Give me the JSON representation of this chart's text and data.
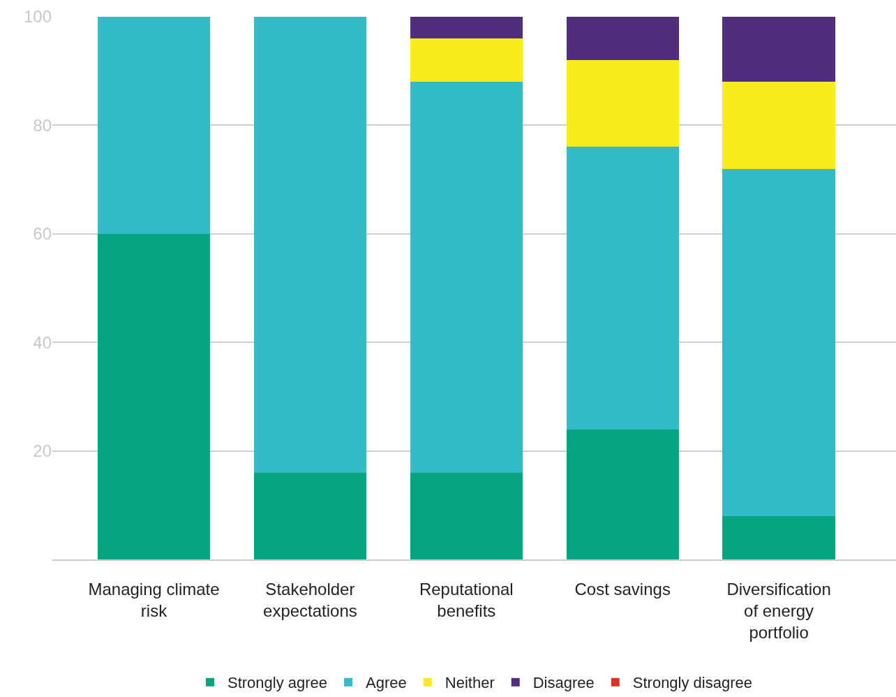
{
  "chart_data": {
    "type": "bar",
    "stacked": true,
    "categories": [
      "Managing climate risk",
      "Stakeholder expectations",
      "Reputational benefits",
      "Cost savings",
      "Diversification of energy portfolio"
    ],
    "series": [
      {
        "name": "Strongly agree",
        "color": "#05a57f",
        "values": [
          60,
          16,
          16,
          24,
          8
        ]
      },
      {
        "name": "Agree",
        "color": "#33bbc8",
        "values": [
          40,
          84,
          72,
          52,
          64
        ]
      },
      {
        "name": "Neither",
        "color": "#f8ec1e",
        "values": [
          0,
          0,
          8,
          16,
          16
        ]
      },
      {
        "name": "Disagree",
        "color": "#512d7e",
        "values": [
          0,
          0,
          4,
          8,
          12
        ]
      },
      {
        "name": "Strongly disagree",
        "color": "#dc3126",
        "values": [
          0,
          0,
          0,
          0,
          0
        ]
      }
    ],
    "ylim": [
      0,
      100
    ],
    "yticks": [
      20,
      40,
      60,
      80,
      100
    ],
    "grid": "y",
    "legend": "bottom"
  }
}
